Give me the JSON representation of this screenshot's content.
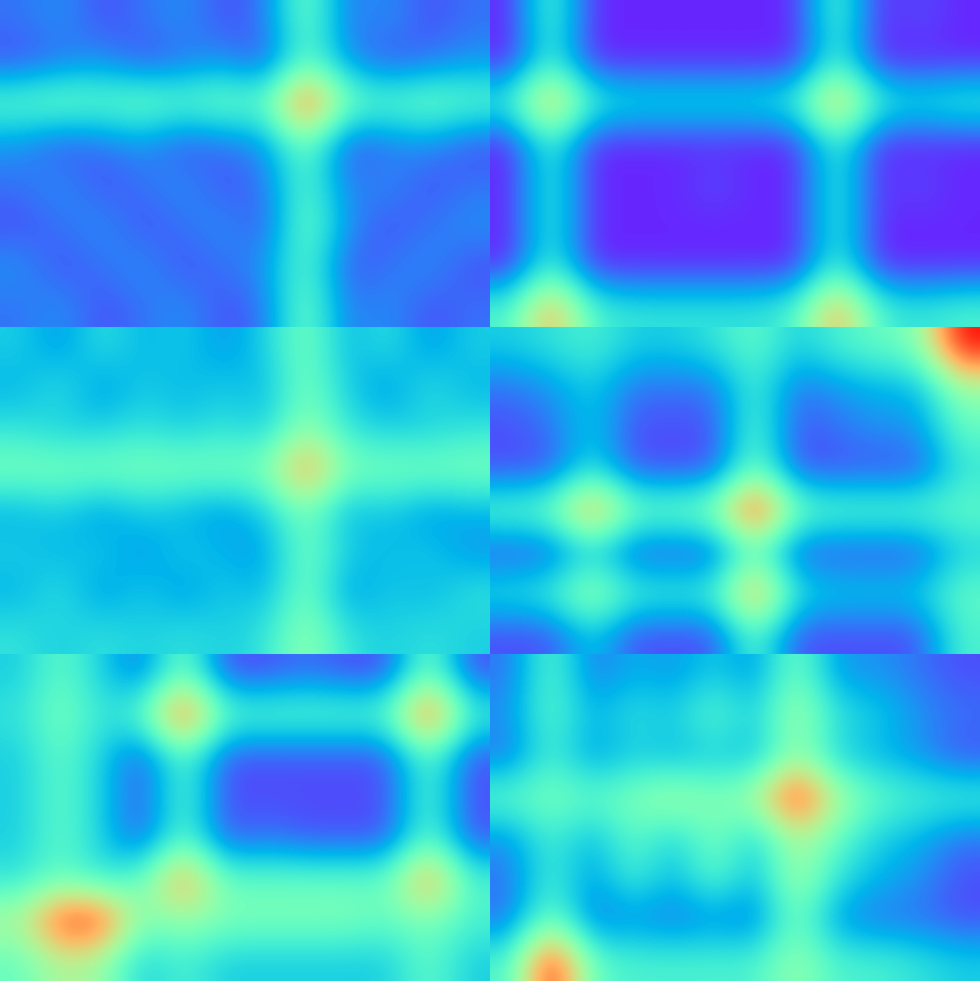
{
  "chart_data": [
    {
      "type": "heatmap",
      "tick_labels": false,
      "color_range": [
        0,
        1
      ],
      "cells": [
        [
          0.15,
          0.2,
          0.1,
          0.15,
          0.2,
          0.1,
          0.15,
          0.5,
          0.15,
          0.2,
          0.1,
          0.15
        ],
        [
          0.1,
          0.15,
          0.2,
          0.1,
          0.15,
          0.2,
          0.1,
          0.45,
          0.2,
          0.1,
          0.15,
          0.2
        ],
        [
          0.45,
          0.5,
          0.45,
          0.5,
          0.45,
          0.5,
          0.45,
          0.95,
          0.5,
          0.45,
          0.5,
          0.45
        ],
        [
          0.2,
          0.1,
          0.15,
          0.2,
          0.1,
          0.15,
          0.2,
          0.5,
          0.1,
          0.15,
          0.2,
          0.1
        ],
        [
          0.15,
          0.2,
          0.1,
          0.15,
          0.2,
          0.1,
          0.15,
          0.45,
          0.15,
          0.2,
          0.1,
          0.15
        ],
        [
          0.1,
          0.15,
          0.2,
          0.1,
          0.15,
          0.2,
          0.1,
          0.5,
          0.2,
          0.1,
          0.15,
          0.2
        ],
        [
          0.2,
          0.1,
          0.15,
          0.2,
          0.1,
          0.15,
          0.2,
          0.45,
          0.1,
          0.15,
          0.2,
          0.1
        ],
        [
          0.15,
          0.2,
          0.1,
          0.15,
          0.2,
          0.1,
          0.15,
          0.5,
          0.15,
          0.2,
          0.1,
          0.15
        ]
      ]
    },
    {
      "type": "heatmap",
      "tick_labels": false,
      "color_range": [
        0,
        1
      ],
      "cells": [
        [
          0.05,
          0.45,
          0.05,
          0.05,
          0.05,
          0.05,
          0.05,
          0.05,
          0.45,
          0.05,
          0.1,
          0.05
        ],
        [
          0.05,
          0.4,
          0.05,
          0.05,
          0.05,
          0.05,
          0.05,
          0.05,
          0.4,
          0.05,
          0.05,
          0.05
        ],
        [
          0.4,
          0.8,
          0.4,
          0.35,
          0.35,
          0.35,
          0.35,
          0.4,
          0.8,
          0.4,
          0.35,
          0.4
        ],
        [
          0.05,
          0.4,
          0.05,
          0.05,
          0.05,
          0.05,
          0.05,
          0.05,
          0.4,
          0.05,
          0.05,
          0.05
        ],
        [
          0.05,
          0.4,
          0.05,
          0.05,
          0.05,
          0.1,
          0.05,
          0.05,
          0.4,
          0.05,
          0.1,
          0.05
        ],
        [
          0.05,
          0.4,
          0.05,
          0.05,
          0.05,
          0.05,
          0.05,
          0.05,
          0.4,
          0.05,
          0.05,
          0.05
        ],
        [
          0.05,
          0.4,
          0.05,
          0.05,
          0.05,
          0.05,
          0.05,
          0.05,
          0.4,
          0.05,
          0.05,
          0.05
        ],
        [
          0.4,
          0.8,
          0.4,
          0.35,
          0.35,
          0.35,
          0.35,
          0.4,
          0.8,
          0.4,
          0.35,
          0.4
        ]
      ]
    },
    {
      "type": "heatmap",
      "tick_labels": false,
      "color_range": [
        0,
        1
      ],
      "cells": [
        [
          0.3,
          0.2,
          0.35,
          0.25,
          0.3,
          0.2,
          0.3,
          0.5,
          0.25,
          0.35,
          0.2,
          0.3
        ],
        [
          0.25,
          0.35,
          0.2,
          0.3,
          0.25,
          0.3,
          0.25,
          0.5,
          0.3,
          0.2,
          0.35,
          0.25
        ],
        [
          0.35,
          0.3,
          0.3,
          0.35,
          0.3,
          0.35,
          0.3,
          0.55,
          0.35,
          0.3,
          0.3,
          0.35
        ],
        [
          0.5,
          0.5,
          0.5,
          0.5,
          0.5,
          0.5,
          0.5,
          0.85,
          0.5,
          0.5,
          0.5,
          0.5
        ],
        [
          0.25,
          0.3,
          0.2,
          0.3,
          0.25,
          0.2,
          0.3,
          0.5,
          0.25,
          0.3,
          0.2,
          0.25
        ],
        [
          0.3,
          0.25,
          0.3,
          0.2,
          0.3,
          0.25,
          0.2,
          0.5,
          0.3,
          0.25,
          0.3,
          0.2
        ],
        [
          0.25,
          0.35,
          0.2,
          0.3,
          0.2,
          0.3,
          0.25,
          0.5,
          0.2,
          0.3,
          0.25,
          0.35
        ],
        [
          0.35,
          0.3,
          0.35,
          0.3,
          0.35,
          0.3,
          0.35,
          0.55,
          0.35,
          0.3,
          0.35,
          0.3
        ]
      ]
    },
    {
      "type": "heatmap",
      "tick_labels": false,
      "color_range": [
        0,
        1
      ],
      "cells": [
        [
          0.3,
          0.35,
          0.4,
          0.3,
          0.3,
          0.35,
          0.45,
          0.3,
          0.4,
          0.45,
          0.5,
          1.0
        ],
        [
          0.15,
          0.2,
          0.3,
          0.15,
          0.15,
          0.15,
          0.4,
          0.15,
          0.2,
          0.25,
          0.25,
          0.55
        ],
        [
          0.1,
          0.15,
          0.3,
          0.1,
          0.1,
          0.1,
          0.45,
          0.1,
          0.15,
          0.2,
          0.2,
          0.45
        ],
        [
          0.1,
          0.1,
          0.35,
          0.1,
          0.1,
          0.1,
          0.5,
          0.1,
          0.1,
          0.1,
          0.1,
          0.35
        ],
        [
          0.45,
          0.5,
          0.85,
          0.5,
          0.5,
          0.55,
          1.0,
          0.5,
          0.45,
          0.45,
          0.45,
          0.45
        ],
        [
          0.1,
          0.1,
          0.3,
          0.1,
          0.1,
          0.1,
          0.45,
          0.1,
          0.1,
          0.1,
          0.1,
          0.3
        ],
        [
          0.35,
          0.4,
          0.6,
          0.4,
          0.4,
          0.4,
          0.85,
          0.35,
          0.3,
          0.3,
          0.3,
          0.45
        ],
        [
          0.1,
          0.1,
          0.3,
          0.1,
          0.1,
          0.1,
          0.45,
          0.1,
          0.1,
          0.1,
          0.1,
          0.4
        ]
      ]
    },
    {
      "type": "heatmap",
      "tick_labels": false,
      "color_range": [
        0,
        1
      ],
      "cells": [
        [
          0.3,
          0.45,
          0.3,
          0.15,
          0.5,
          0.1,
          0.1,
          0.15,
          0.1,
          0.1,
          0.5,
          0.1
        ],
        [
          0.35,
          0.5,
          0.35,
          0.45,
          0.95,
          0.45,
          0.45,
          0.45,
          0.45,
          0.45,
          0.95,
          0.4
        ],
        [
          0.3,
          0.45,
          0.3,
          0.1,
          0.45,
          0.1,
          0.1,
          0.1,
          0.1,
          0.1,
          0.45,
          0.1
        ],
        [
          0.3,
          0.45,
          0.3,
          0.1,
          0.45,
          0.1,
          0.1,
          0.1,
          0.1,
          0.1,
          0.45,
          0.1
        ],
        [
          0.3,
          0.45,
          0.3,
          0.1,
          0.45,
          0.1,
          0.15,
          0.1,
          0.1,
          0.1,
          0.45,
          0.1
        ],
        [
          0.35,
          0.45,
          0.35,
          0.45,
          0.85,
          0.45,
          0.45,
          0.45,
          0.45,
          0.45,
          0.85,
          0.4
        ],
        [
          0.6,
          0.95,
          0.95,
          0.5,
          0.55,
          0.5,
          0.5,
          0.5,
          0.5,
          0.45,
          0.5,
          0.4
        ],
        [
          0.45,
          0.6,
          0.55,
          0.3,
          0.4,
          0.3,
          0.3,
          0.3,
          0.3,
          0.3,
          0.45,
          0.3
        ]
      ]
    },
    {
      "type": "heatmap",
      "tick_labels": false,
      "color_range": [
        0,
        1
      ],
      "cells": [
        [
          0.15,
          0.45,
          0.15,
          0.25,
          0.2,
          0.3,
          0.2,
          0.5,
          0.2,
          0.2,
          0.15,
          0.1
        ],
        [
          0.2,
          0.45,
          0.25,
          0.35,
          0.3,
          0.45,
          0.3,
          0.6,
          0.35,
          0.3,
          0.2,
          0.15
        ],
        [
          0.15,
          0.4,
          0.2,
          0.3,
          0.25,
          0.3,
          0.25,
          0.55,
          0.3,
          0.25,
          0.2,
          0.1
        ],
        [
          0.45,
          0.5,
          0.45,
          0.5,
          0.6,
          0.5,
          0.6,
          1.0,
          0.6,
          0.45,
          0.4,
          0.4
        ],
        [
          0.2,
          0.4,
          0.25,
          0.45,
          0.3,
          0.5,
          0.3,
          0.6,
          0.45,
          0.3,
          0.25,
          0.15
        ],
        [
          0.15,
          0.4,
          0.2,
          0.4,
          0.25,
          0.45,
          0.25,
          0.6,
          0.35,
          0.25,
          0.2,
          0.1
        ],
        [
          0.15,
          0.5,
          0.15,
          0.2,
          0.15,
          0.2,
          0.15,
          0.5,
          0.2,
          0.15,
          0.15,
          0.1
        ],
        [
          0.4,
          1.0,
          0.45,
          0.4,
          0.4,
          0.4,
          0.4,
          0.55,
          0.4,
          0.4,
          0.35,
          0.3
        ]
      ]
    }
  ]
}
